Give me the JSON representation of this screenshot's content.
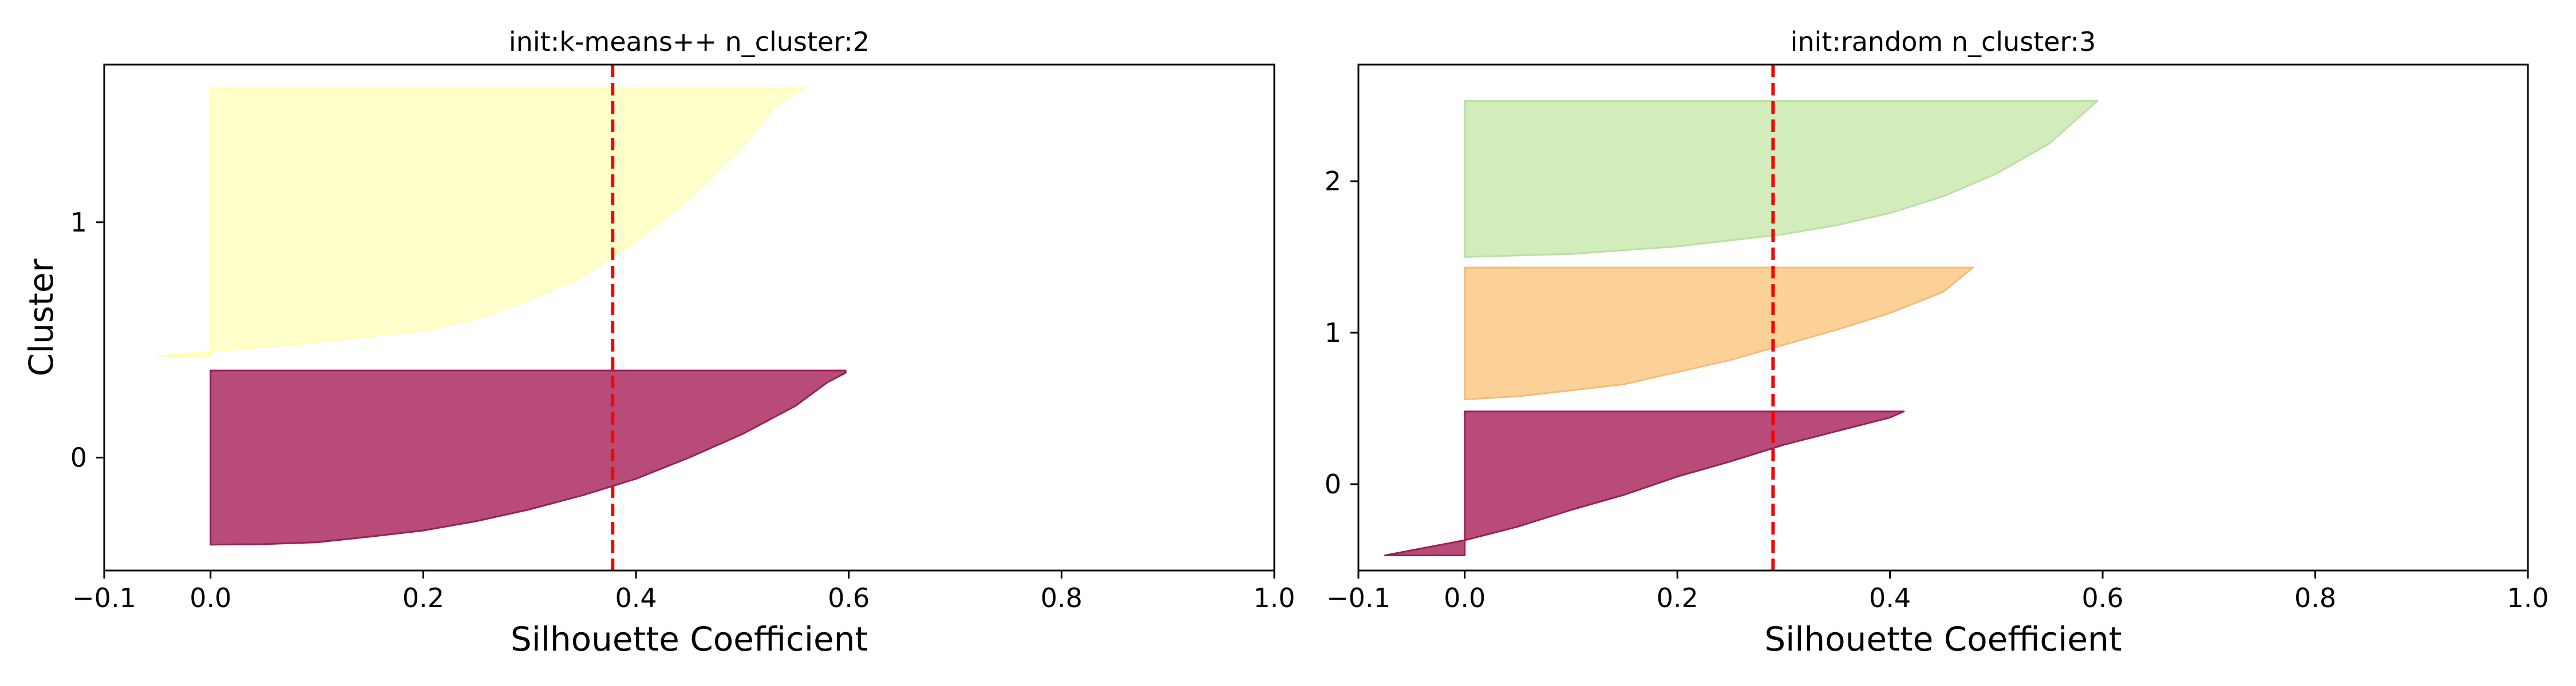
{
  "chart_data": [
    {
      "type": "area",
      "title": "init:k-means++  n_cluster:2",
      "xlabel": "Silhouette Coefficient",
      "ylabel": "Cluster",
      "xlim": [
        -0.1,
        1.0
      ],
      "ylim": [
        -0.48,
        1.67
      ],
      "xticks": [
        -0.1,
        0.0,
        0.2,
        0.4,
        0.6,
        0.8,
        1.0
      ],
      "xtick_labels": [
        "−0.1",
        "0.0",
        "0.2",
        "0.4",
        "0.6",
        "0.8",
        "1.0"
      ],
      "yticks": [
        0,
        1
      ],
      "ytick_labels": [
        "0",
        "1"
      ],
      "average_silhouette": 0.378,
      "grid": false,
      "clusters": [
        {
          "label": "0",
          "color": "#b84b78",
          "edge_color": "#9a1f55",
          "y_range": [
            -0.37,
            0.37
          ],
          "profile": [
            [
              0.0,
              -0.37
            ],
            [
              0.05,
              -0.368
            ],
            [
              0.1,
              -0.36
            ],
            [
              0.15,
              -0.336
            ],
            [
              0.2,
              -0.31
            ],
            [
              0.25,
              -0.27
            ],
            [
              0.3,
              -0.22
            ],
            [
              0.35,
              -0.16
            ],
            [
              0.4,
              -0.09
            ],
            [
              0.45,
              0.0
            ],
            [
              0.5,
              0.1
            ],
            [
              0.55,
              0.22
            ],
            [
              0.58,
              0.32
            ],
            [
              0.597,
              0.36
            ],
            [
              0.597,
              0.37
            ]
          ]
        },
        {
          "label": "1",
          "color": "#ffffcc",
          "edge_color": "#ffffb3",
          "y_range": [
            0.43,
            1.57
          ],
          "profile": [
            [
              -0.05,
              0.43
            ],
            [
              0.0,
              0.45
            ],
            [
              0.1,
              0.49
            ],
            [
              0.2,
              0.54
            ],
            [
              0.25,
              0.59
            ],
            [
              0.3,
              0.67
            ],
            [
              0.35,
              0.77
            ],
            [
              0.4,
              0.92
            ],
            [
              0.45,
              1.1
            ],
            [
              0.5,
              1.32
            ],
            [
              0.53,
              1.49
            ],
            [
              0.558,
              1.57
            ]
          ]
        }
      ]
    },
    {
      "type": "area",
      "title": "init:random  n_cluster:3",
      "xlabel": "Silhouette Coefficient",
      "ylabel": "",
      "xlim": [
        -0.1,
        1.0
      ],
      "ylim": [
        -0.57,
        2.77
      ],
      "xticks": [
        -0.1,
        0.0,
        0.2,
        0.4,
        0.6,
        0.8,
        1.0
      ],
      "xtick_labels": [
        "−0.1",
        "0.0",
        "0.2",
        "0.4",
        "0.6",
        "0.8",
        "1.0"
      ],
      "yticks": [
        0,
        1,
        2
      ],
      "ytick_labels": [
        "0",
        "1",
        "2"
      ],
      "average_silhouette": 0.29,
      "grid": false,
      "clusters": [
        {
          "label": "0",
          "color": "#b84b78",
          "edge_color": "#9a1f55",
          "y_range": [
            -0.47,
            0.48
          ],
          "profile": [
            [
              -0.075,
              -0.47
            ],
            [
              0.0,
              -0.37
            ],
            [
              0.05,
              -0.28
            ],
            [
              0.1,
              -0.17
            ],
            [
              0.15,
              -0.07
            ],
            [
              0.2,
              0.05
            ],
            [
              0.25,
              0.15
            ],
            [
              0.3,
              0.26
            ],
            [
              0.35,
              0.35
            ],
            [
              0.4,
              0.44
            ],
            [
              0.413,
              0.48
            ]
          ]
        },
        {
          "label": "1",
          "color": "#fcd198",
          "edge_color": "#f9b872",
          "y_range": [
            0.56,
            1.43
          ],
          "profile": [
            [
              0.0,
              0.56
            ],
            [
              0.05,
              0.58
            ],
            [
              0.1,
              0.62
            ],
            [
              0.15,
              0.66
            ],
            [
              0.2,
              0.74
            ],
            [
              0.25,
              0.82
            ],
            [
              0.3,
              0.92
            ],
            [
              0.35,
              1.02
            ],
            [
              0.4,
              1.13
            ],
            [
              0.45,
              1.27
            ],
            [
              0.478,
              1.43
            ]
          ]
        },
        {
          "label": "2",
          "color": "#d2ecbc",
          "edge_color": "#b8e19f",
          "y_range": [
            1.5,
            2.53
          ],
          "profile": [
            [
              0.0,
              1.5
            ],
            [
              0.1,
              1.52
            ],
            [
              0.2,
              1.57
            ],
            [
              0.3,
              1.65
            ],
            [
              0.35,
              1.71
            ],
            [
              0.4,
              1.79
            ],
            [
              0.45,
              1.9
            ],
            [
              0.5,
              2.05
            ],
            [
              0.55,
              2.25
            ],
            [
              0.595,
              2.53
            ]
          ]
        }
      ]
    }
  ]
}
